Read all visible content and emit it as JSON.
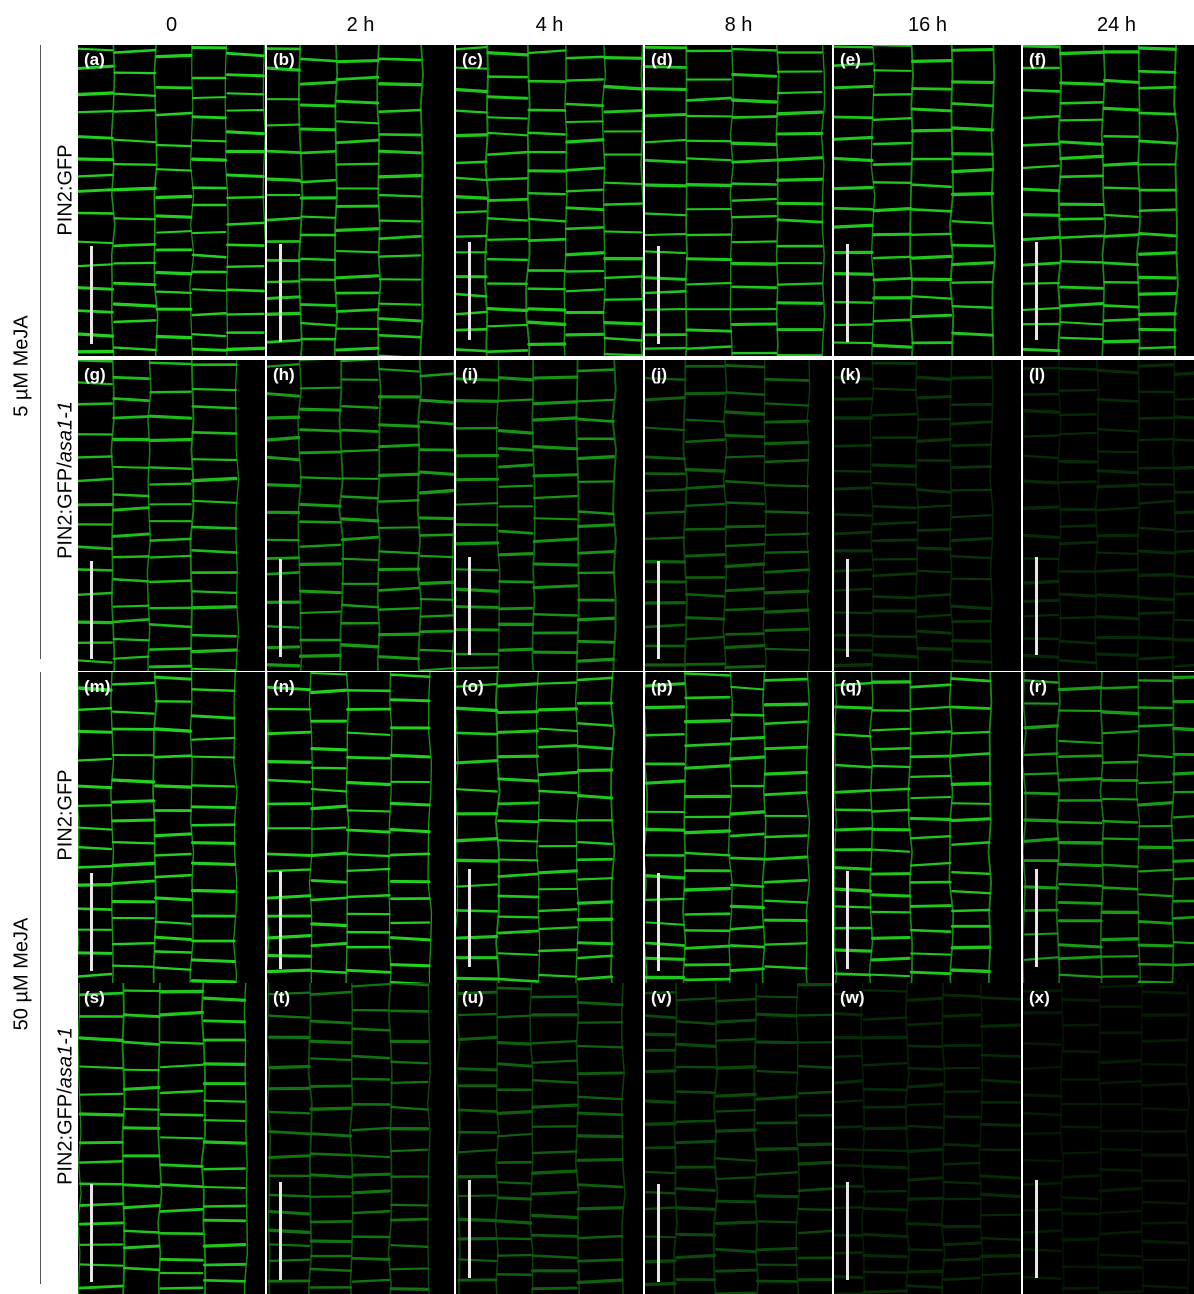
{
  "columns": [
    "0",
    "2 h",
    "4 h",
    "8 h",
    "16 h",
    "24 h"
  ],
  "conditions": [
    "5 µM MeJA",
    "50 µM MeJA"
  ],
  "genotypes": [
    "PIN2:GFP",
    "PIN2:GFP/"
  ],
  "mutant": "asa1-1",
  "panel_letters": [
    "(a)",
    "(b)",
    "(c)",
    "(d)",
    "(e)",
    "(f)",
    "(g)",
    "(h)",
    "(i)",
    "(j)",
    "(k)",
    "(l)",
    "(m)",
    "(n)",
    "(o)",
    "(p)",
    "(q)",
    "(r)",
    "(s)",
    "(t)",
    "(u)",
    "(v)",
    "(w)",
    "(x)"
  ],
  "colors": {
    "fluorescence": "#22d21e",
    "background": "#000000",
    "scale_bar": "#e6e6e6"
  },
  "relative_brightness": [
    [
      1.0,
      0.95,
      0.95,
      0.95,
      0.95,
      0.95
    ],
    [
      0.9,
      0.75,
      0.7,
      0.45,
      0.25,
      0.2
    ],
    [
      1.0,
      1.0,
      0.95,
      0.95,
      0.95,
      0.75
    ],
    [
      0.95,
      0.55,
      0.45,
      0.35,
      0.2,
      0.12
    ]
  ]
}
